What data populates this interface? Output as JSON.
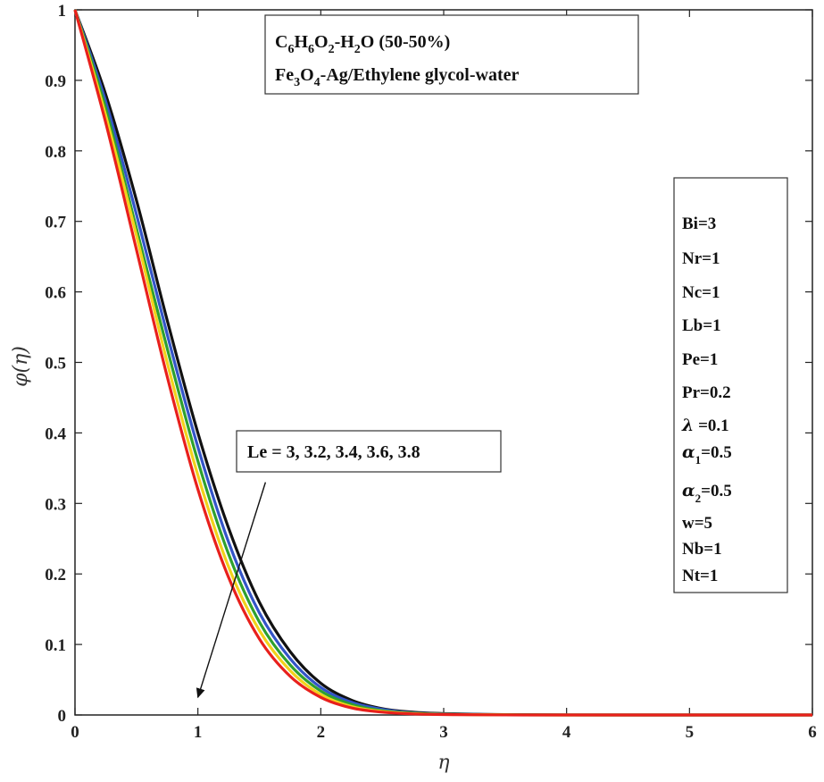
{
  "chart_data": {
    "type": "line",
    "xlabel": "η",
    "ylabel": "φ(η)",
    "xlim": [
      0,
      6
    ],
    "ylim": [
      0,
      1
    ],
    "x_ticks": [
      "0",
      "1",
      "2",
      "3",
      "4",
      "5",
      "6"
    ],
    "y_ticks": [
      "0",
      "0.1",
      "0.2",
      "0.3",
      "0.4",
      "0.5",
      "0.6",
      "0.7",
      "0.8",
      "0.9",
      "1"
    ],
    "grid": false,
    "x": [
      0,
      0.25,
      0.5,
      0.75,
      1.0,
      1.25,
      1.5,
      1.75,
      2.0,
      2.25,
      2.5,
      2.75,
      3.0,
      3.5,
      4.0,
      5.0,
      6.0
    ],
    "series": [
      {
        "color": "#111111",
        "values": [
          1.0,
          0.88,
          0.73,
          0.56,
          0.4,
          0.265,
          0.16,
          0.09,
          0.045,
          0.021,
          0.009,
          0.004,
          0.002,
          0.0005,
          0.0001,
          0.0,
          0.0
        ]
      },
      {
        "color": "#3355c8",
        "values": [
          1.0,
          0.87,
          0.71,
          0.54,
          0.38,
          0.245,
          0.145,
          0.08,
          0.039,
          0.018,
          0.008,
          0.003,
          0.0015,
          0.0004,
          0.0001,
          0.0,
          0.0
        ]
      },
      {
        "color": "#2ea02e",
        "values": [
          1.0,
          0.86,
          0.69,
          0.52,
          0.36,
          0.228,
          0.132,
          0.071,
          0.034,
          0.015,
          0.006,
          0.0025,
          0.001,
          0.0003,
          0.0,
          0.0,
          0.0
        ]
      },
      {
        "color": "#f2d21b",
        "values": [
          1.0,
          0.85,
          0.68,
          0.5,
          0.34,
          0.21,
          0.12,
          0.063,
          0.029,
          0.012,
          0.005,
          0.002,
          0.0008,
          0.0002,
          0.0,
          0.0,
          0.0
        ]
      },
      {
        "color": "#e8201c",
        "values": [
          1.0,
          0.84,
          0.66,
          0.48,
          0.32,
          0.195,
          0.108,
          0.055,
          0.025,
          0.01,
          0.004,
          0.0015,
          0.0006,
          0.0001,
          0.0,
          0.0,
          0.0
        ]
      }
    ],
    "title_box": {
      "line1": {
        "C": "C",
        "s1": "6",
        "H": "H",
        "s2": "6",
        "O": "O",
        "s3": "2",
        "dash": "-H",
        "s4": "2",
        "rest": "O (50-50%)"
      },
      "line2": {
        "Fe": "Fe",
        "s1": "3",
        "O": "O",
        "s2": "4",
        "rest": "-Ag/Ethylene glycol-water"
      }
    },
    "annotation": {
      "text": "Le = 3, 3.2, 3.4, 3.6, 3.8",
      "arrow_from": [
        1.55,
        0.33
      ],
      "arrow_to": [
        1.0,
        0.025
      ]
    },
    "params": {
      "Bi": "Bi=3",
      "Nr": "Nr=1",
      "Nc": "Nc=1",
      "Lb": "Lb=1",
      "Pe": "Pe=1",
      "Pr": "Pr=0.2",
      "lambda_sym": "λ",
      "lambda_val": " =0.1",
      "a1_sym": "α",
      "a1_sub": "1",
      "a1_val": "=0.5",
      "a2_sym": "α",
      "a2_sub": "2",
      "a2_val": "=0.5",
      "w": "w=5",
      "Nb": "Nb=1",
      "Nt": "Nt=1"
    }
  }
}
